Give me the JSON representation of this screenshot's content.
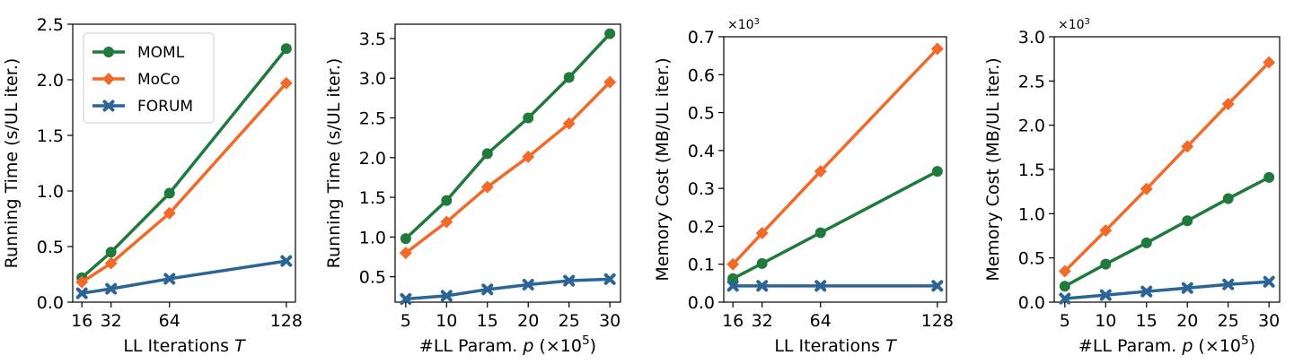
{
  "colors": {
    "MOML": "#1f7a3c",
    "MoCo": "#f26a2a",
    "FORUM": "#2c6595"
  },
  "markers": {
    "MOML": "circle",
    "MoCo": "diamond",
    "FORUM": "x"
  },
  "legend": {
    "entries": [
      "MOML",
      "MoCo",
      "FORUM"
    ],
    "position": "top-left",
    "panel": 0
  },
  "chart_data": [
    {
      "type": "line",
      "xlabel": "LL Iterations T",
      "ylabel": "Running Time (s/UL iter.)",
      "multiplier": "",
      "x": [
        16,
        32,
        64,
        128
      ],
      "xticks": [
        "16",
        "32",
        "64",
        "128"
      ],
      "xlim": [
        11,
        133
      ],
      "ylim": [
        0,
        2.5
      ],
      "yticks": [
        "0.0",
        "0.5",
        "1.0",
        "1.5",
        "2.0",
        "2.5"
      ],
      "grid": false,
      "series": [
        {
          "name": "MOML",
          "values": [
            0.22,
            0.45,
            0.98,
            2.28
          ]
        },
        {
          "name": "MoCo",
          "values": [
            0.18,
            0.35,
            0.8,
            1.97
          ]
        },
        {
          "name": "FORUM",
          "values": [
            0.08,
            0.12,
            0.21,
            0.37
          ]
        }
      ]
    },
    {
      "type": "line",
      "xlabel": "#LL Param. p (×10^5)",
      "ylabel": "Running Time (s/UL iter.)",
      "multiplier": "",
      "x": [
        5,
        10,
        15,
        20,
        25,
        30
      ],
      "xticks": [
        "5",
        "10",
        "15",
        "20",
        "25",
        "30"
      ],
      "xlim": [
        3.7,
        31.3
      ],
      "ylim": [
        0.18,
        3.68
      ],
      "yticks": [
        "0.5",
        "1.0",
        "1.5",
        "2.0",
        "2.5",
        "3.0",
        "3.5"
      ],
      "grid": false,
      "series": [
        {
          "name": "MOML",
          "values": [
            0.98,
            1.46,
            2.05,
            2.5,
            3.01,
            3.56
          ]
        },
        {
          "name": "MoCo",
          "values": [
            0.8,
            1.19,
            1.63,
            2.01,
            2.43,
            2.95
          ]
        },
        {
          "name": "FORUM",
          "values": [
            0.22,
            0.26,
            0.34,
            0.4,
            0.45,
            0.47
          ]
        }
      ]
    },
    {
      "type": "line",
      "xlabel": "LL Iterations T",
      "ylabel": "Memory Cost (MB/UL iter.)",
      "multiplier": "×10^3",
      "x": [
        16,
        32,
        64,
        128
      ],
      "xticks": [
        "16",
        "32",
        "64",
        "128"
      ],
      "xlim": [
        11,
        133
      ],
      "ylim": [
        0,
        0.7
      ],
      "yticks": [
        "0.0",
        "0.1",
        "0.2",
        "0.3",
        "0.4",
        "0.5",
        "0.6",
        "0.7"
      ],
      "grid": false,
      "series": [
        {
          "name": "MOML",
          "values": [
            0.062,
            0.102,
            0.183,
            0.345
          ]
        },
        {
          "name": "MoCo",
          "values": [
            0.1,
            0.182,
            0.345,
            0.668
          ]
        },
        {
          "name": "FORUM",
          "values": [
            0.043,
            0.043,
            0.043,
            0.043
          ]
        }
      ]
    },
    {
      "type": "line",
      "xlabel": "#LL Param. p (×10^5)",
      "ylabel": "Memory Cost (MB/UL iter.)",
      "multiplier": "×10^3",
      "x": [
        5,
        10,
        15,
        20,
        25,
        30
      ],
      "xticks": [
        "5",
        "10",
        "15",
        "20",
        "25",
        "30"
      ],
      "xlim": [
        3.7,
        31.3
      ],
      "ylim": [
        0,
        3.0
      ],
      "yticks": [
        "0.0",
        "0.5",
        "1.0",
        "1.5",
        "2.0",
        "2.5",
        "3.0"
      ],
      "grid": false,
      "series": [
        {
          "name": "MOML",
          "values": [
            0.18,
            0.43,
            0.67,
            0.92,
            1.17,
            1.41
          ]
        },
        {
          "name": "MoCo",
          "values": [
            0.35,
            0.81,
            1.28,
            1.76,
            2.24,
            2.71
          ]
        },
        {
          "name": "FORUM",
          "values": [
            0.04,
            0.08,
            0.12,
            0.16,
            0.2,
            0.23
          ]
        }
      ]
    }
  ]
}
